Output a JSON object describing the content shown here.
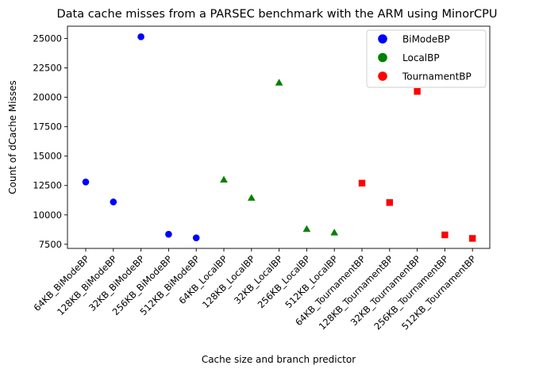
{
  "chart_data": {
    "type": "scatter",
    "title": "Data cache misses from a PARSEC benchmark with the ARM using MinorCPU",
    "xlabel": "Cache size and branch predictor",
    "ylabel": "Count of dCache Misses",
    "categories": [
      "64KB_BiModeBP",
      "128KB_BiModeBP",
      "32KB_BiModeBP",
      "256KB_BiModeBP",
      "512KB_BiModeBP",
      "64KB_LocalBP",
      "128KB_LocalBP",
      "32KB_LocalBP",
      "256KB_LocalBP",
      "512KB_LocalBP",
      "64KB_TournamentBP",
      "128KB_TournamentBP",
      "32KB_TournamentBP",
      "256KB_TournamentBP",
      "512KB_TournamentBP"
    ],
    "yticks": [
      7500,
      10000,
      12500,
      15000,
      17500,
      20000,
      22500,
      25000
    ],
    "ylim": [
      7150,
      26050
    ],
    "grid": false,
    "legend_position": "top-right",
    "series": [
      {
        "name": "BiModeBP",
        "color": "#0000ff",
        "marker": "circle",
        "categories": [
          "64KB_BiModeBP",
          "128KB_BiModeBP",
          "32KB_BiModeBP",
          "256KB_BiModeBP",
          "512KB_BiModeBP"
        ],
        "values": [
          12800,
          11100,
          25150,
          8350,
          8050
        ]
      },
      {
        "name": "LocalBP",
        "color": "#008000",
        "marker": "triangle",
        "categories": [
          "64KB_LocalBP",
          "128KB_LocalBP",
          "32KB_LocalBP",
          "256KB_LocalBP",
          "512KB_LocalBP"
        ],
        "values": [
          13000,
          11450,
          21250,
          8800,
          8500
        ]
      },
      {
        "name": "TournamentBP",
        "color": "#ff0000",
        "marker": "square",
        "categories": [
          "64KB_TournamentBP",
          "128KB_TournamentBP",
          "32KB_TournamentBP",
          "256KB_TournamentBP",
          "512KB_TournamentBP"
        ],
        "values": [
          12700,
          11050,
          20500,
          8300,
          8000
        ]
      }
    ]
  }
}
